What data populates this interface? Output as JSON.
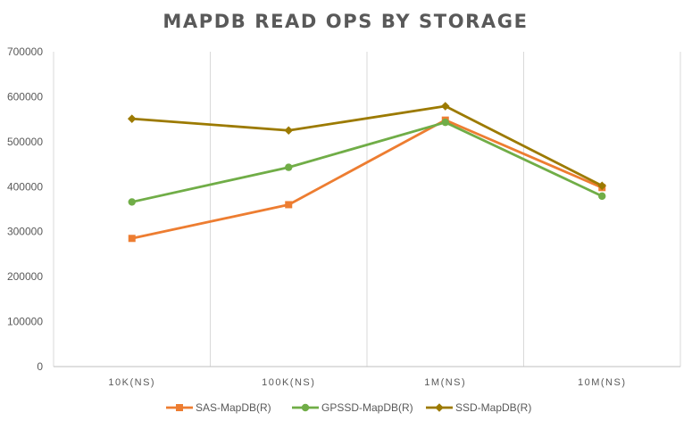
{
  "chart_data": {
    "type": "line",
    "title": "MAPDB READ OPS BY STORAGE",
    "xlabel": "",
    "ylabel": "",
    "categories": [
      "10K(NS)",
      "100K(NS)",
      "1M(NS)",
      "10M(NS)"
    ],
    "ylim": [
      0,
      700000
    ],
    "yticks": [
      0,
      100000,
      200000,
      300000,
      400000,
      500000,
      600000,
      700000
    ],
    "grid": "vertical",
    "legend_position": "bottom",
    "series": [
      {
        "name": "SAS-MapDB(R)",
        "color": "#ed7d31",
        "marker": "square",
        "values": [
          285000,
          360000,
          548000,
          398000
        ]
      },
      {
        "name": "GPSSD-MapDB(R)",
        "color": "#70ad47",
        "marker": "circle",
        "values": [
          366000,
          443000,
          543000,
          379000
        ]
      },
      {
        "name": "SSD-MapDB(R)",
        "color": "#9c7a00",
        "marker": "diamond",
        "values": [
          551000,
          525000,
          579000,
          402000
        ]
      }
    ]
  }
}
